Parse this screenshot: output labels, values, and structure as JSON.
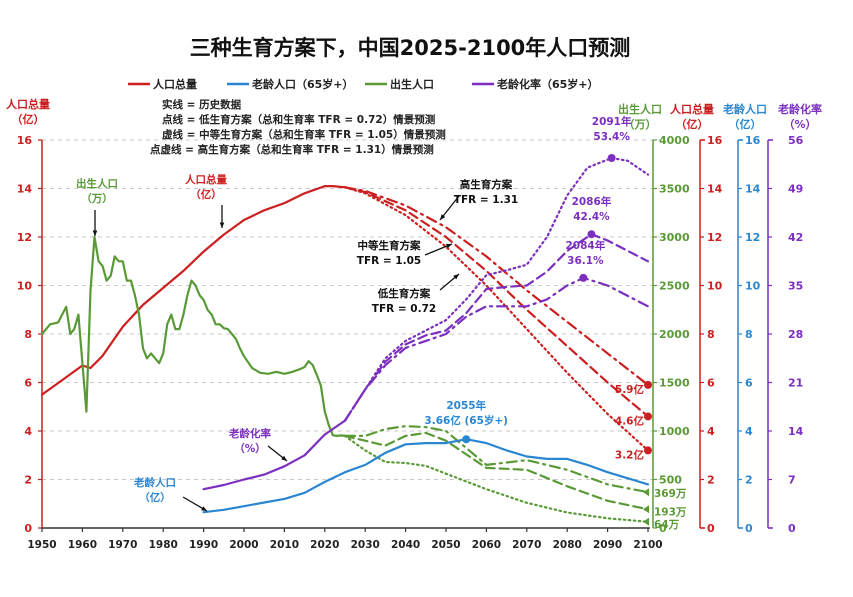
{
  "chart_data": {
    "type": "line",
    "title": "三种生育方案下，中国2025-2100年人口预测",
    "xlabel": "",
    "xlim": [
      1950,
      2100
    ],
    "x_ticks": [
      "1950",
      "1960",
      "1970",
      "1980",
      "1990",
      "2000",
      "2010",
      "2020",
      "2030",
      "2040",
      "2050",
      "2060",
      "2070",
      "2080",
      "2090",
      "2100"
    ],
    "legend": {
      "placement": "top",
      "entries": [
        {
          "label": "人口总量",
          "color": "#cc1f1f"
        },
        {
          "label": "老龄人口（65岁+）",
          "color": "#2a86d1"
        },
        {
          "label": "出生人口",
          "color": "#5a9a36"
        },
        {
          "label": "老龄化率（65岁+）",
          "color": "#7b2fbf"
        }
      ],
      "notes": [
        "实线 = 历史数据",
        "点线 = 低生育方案（总和生育率 TFR = 0.72）情景预测",
        "虚线 = 中等生育方案（总和生育率 TFR = 1.05）情景预测",
        "点虚线 = 高生育方案（总和生育率 TFR = 1.31）情景预测"
      ]
    },
    "axes": [
      {
        "id": "births",
        "title": "出生人口",
        "unit": "（万）",
        "color": "#5a9a36",
        "ylim": [
          0,
          4000
        ],
        "ticks": [
          "0",
          "500",
          "1000",
          "1500",
          "2000",
          "2500",
          "3000",
          "3500",
          "4000"
        ]
      },
      {
        "id": "pop_right",
        "title": "人口总量",
        "unit": "（亿）",
        "color": "#cc1f1f",
        "ylim": [
          0,
          16
        ],
        "ticks": [
          "0",
          "2",
          "4",
          "6",
          "8",
          "10",
          "12",
          "14",
          "16"
        ]
      },
      {
        "id": "elderly",
        "title": "老龄人口",
        "unit": "（亿）",
        "color": "#2a86d1",
        "ylim": [
          0,
          16
        ],
        "ticks": [
          "0",
          "2",
          "4",
          "6",
          "8",
          "10",
          "12",
          "14",
          "16"
        ]
      },
      {
        "id": "aging",
        "title": "老龄化率",
        "unit": "（%）",
        "color": "#7b2fbf",
        "ylim": [
          0,
          56
        ],
        "ticks": [
          "0",
          "7",
          "14",
          "21",
          "28",
          "35",
          "42",
          "49",
          "56"
        ]
      }
    ],
    "left_axis": {
      "title": "人口总量",
      "unit": "（亿）",
      "color": "#cc1f1f",
      "ylim": [
        0,
        16
      ],
      "ticks": [
        "0",
        "2",
        "4",
        "6",
        "8",
        "10",
        "12",
        "14",
        "16"
      ]
    },
    "series": [
      {
        "name": "人口总量-历史",
        "axis": "pop",
        "style": "solid",
        "color": "#cc1f1f",
        "x": [
          1950,
          1955,
          1960,
          1962,
          1965,
          1970,
          1975,
          1980,
          1985,
          1990,
          1995,
          2000,
          2005,
          2010,
          2015,
          2020,
          2022,
          2025
        ],
        "y": [
          5.5,
          6.1,
          6.7,
          6.6,
          7.1,
          8.3,
          9.2,
          9.9,
          10.6,
          11.4,
          12.1,
          12.7,
          13.1,
          13.4,
          13.8,
          14.1,
          14.1,
          14.05
        ]
      },
      {
        "name": "人口总量-低",
        "axis": "pop",
        "style": "dotted",
        "color": "#cc1f1f",
        "x": [
          2025,
          2030,
          2040,
          2050,
          2060,
          2070,
          2080,
          2090,
          2100
        ],
        "y": [
          14.05,
          13.8,
          12.9,
          11.6,
          10.0,
          8.2,
          6.4,
          4.7,
          3.2
        ]
      },
      {
        "name": "人口总量-中",
        "axis": "pop",
        "style": "dashed",
        "color": "#cc1f1f",
        "x": [
          2025,
          2030,
          2040,
          2050,
          2060,
          2070,
          2080,
          2090,
          2100
        ],
        "y": [
          14.05,
          13.85,
          13.1,
          12.0,
          10.6,
          9.0,
          7.5,
          6.0,
          4.6
        ]
      },
      {
        "name": "人口总量-高",
        "axis": "pop",
        "style": "dashdot",
        "color": "#cc1f1f",
        "x": [
          2025,
          2030,
          2040,
          2050,
          2060,
          2070,
          2080,
          2090,
          2100
        ],
        "y": [
          14.05,
          13.9,
          13.3,
          12.4,
          11.2,
          9.8,
          8.5,
          7.2,
          5.9
        ]
      },
      {
        "name": "出生人口-历史",
        "axis": "births",
        "style": "solid",
        "color": "#5a9a36",
        "x": [
          1950,
          1952,
          1954,
          1956,
          1957,
          1958,
          1959,
          1960,
          1961,
          1962,
          1963,
          1964,
          1965,
          1966,
          1967,
          1968,
          1969,
          1970,
          1971,
          1972,
          1973,
          1974,
          1975,
          1976,
          1977,
          1978,
          1979,
          1980,
          1981,
          1982,
          1983,
          1984,
          1985,
          1986,
          1987,
          1988,
          1989,
          1990,
          1991,
          1992,
          1993,
          1994,
          1995,
          1996,
          1997,
          1998,
          1999,
          2000,
          2002,
          2004,
          2006,
          2008,
          2010,
          2012,
          2014,
          2015,
          2016,
          2017,
          2018,
          2019,
          2020,
          2021,
          2022,
          2023,
          2024,
          2025
        ],
        "y": [
          2000,
          2100,
          2120,
          2280,
          2000,
          2050,
          2200,
          1700,
          1200,
          2450,
          3000,
          2750,
          2700,
          2550,
          2600,
          2800,
          2750,
          2750,
          2550,
          2550,
          2400,
          2200,
          1850,
          1750,
          1800,
          1750,
          1700,
          1800,
          2100,
          2200,
          2050,
          2050,
          2200,
          2400,
          2550,
          2500,
          2400,
          2350,
          2250,
          2200,
          2100,
          2100,
          2060,
          2050,
          2000,
          1950,
          1850,
          1770,
          1650,
          1600,
          1590,
          1610,
          1590,
          1610,
          1640,
          1660,
          1720,
          1680,
          1580,
          1470,
          1200,
          1060,
          956,
          950,
          955,
          950
        ]
      },
      {
        "name": "出生人口-低",
        "axis": "births",
        "style": "dotted",
        "color": "#5a9a36",
        "x": [
          2025,
          2030,
          2035,
          2040,
          2045,
          2050,
          2060,
          2070,
          2080,
          2090,
          2100
        ],
        "y": [
          950,
          800,
          680,
          670,
          640,
          560,
          400,
          260,
          160,
          100,
          64
        ]
      },
      {
        "name": "出生人口-中",
        "axis": "births",
        "style": "dashed",
        "color": "#5a9a36",
        "x": [
          2025,
          2030,
          2035,
          2040,
          2045,
          2050,
          2060,
          2070,
          2080,
          2090,
          2100
        ],
        "y": [
          950,
          900,
          850,
          950,
          980,
          900,
          620,
          600,
          430,
          280,
          193
        ]
      },
      {
        "name": "出生人口-高",
        "axis": "births",
        "style": "dashdot",
        "color": "#5a9a36",
        "x": [
          2025,
          2030,
          2035,
          2040,
          2045,
          2050,
          2060,
          2070,
          2080,
          2090,
          2100
        ],
        "y": [
          950,
          950,
          1020,
          1050,
          1040,
          1000,
          650,
          700,
          600,
          450,
          369
        ]
      },
      {
        "name": "老龄人口-历史",
        "axis": "elderly",
        "style": "solid",
        "color": "#2a86d1",
        "x": [
          1990,
          1995,
          2000,
          2005,
          2010,
          2015,
          2020,
          2025
        ],
        "y": [
          0.65,
          0.75,
          0.9,
          1.05,
          1.2,
          1.45,
          1.9,
          2.3
        ]
      },
      {
        "name": "老龄人口-预测",
        "axis": "elderly",
        "style": "solid",
        "color": "#2a86d1",
        "x": [
          2025,
          2030,
          2035,
          2040,
          2045,
          2050,
          2055,
          2060,
          2065,
          2070,
          2075,
          2080,
          2085,
          2090,
          2095,
          2100
        ],
        "y": [
          2.3,
          2.6,
          3.1,
          3.45,
          3.5,
          3.5,
          3.66,
          3.5,
          3.2,
          2.95,
          2.85,
          2.85,
          2.6,
          2.3,
          2.05,
          1.8
        ]
      },
      {
        "name": "老龄化率-历史",
        "axis": "aging",
        "style": "solid",
        "color": "#7b2fbf",
        "x": [
          1990,
          1995,
          2000,
          2005,
          2010,
          2015,
          2020,
          2025
        ],
        "y": [
          5.6,
          6.2,
          7.0,
          7.7,
          8.9,
          10.5,
          13.5,
          15.5
        ]
      },
      {
        "name": "老龄化率-低",
        "axis": "aging",
        "style": "dotted",
        "color": "#7b2fbf",
        "x": [
          2025,
          2030,
          2035,
          2040,
          2045,
          2050,
          2055,
          2060,
          2065,
          2070,
          2075,
          2080,
          2085,
          2091,
          2095,
          2100
        ],
        "y": [
          15.5,
          20,
          24.5,
          27,
          28.5,
          30,
          33,
          36.5,
          37.2,
          38,
          42,
          48,
          52,
          53.4,
          53,
          51
        ]
      },
      {
        "name": "老龄化率-中",
        "axis": "aging",
        "style": "dashed",
        "color": "#7b2fbf",
        "x": [
          2025,
          2030,
          2035,
          2040,
          2045,
          2050,
          2055,
          2060,
          2065,
          2070,
          2075,
          2080,
          2086,
          2090,
          2095,
          2100
        ],
        "y": [
          15.5,
          20,
          24,
          26.5,
          27.8,
          28.5,
          31,
          34.5,
          34.8,
          35,
          37,
          40,
          42.4,
          41.5,
          40,
          38.5
        ]
      },
      {
        "name": "老龄化率-高",
        "axis": "aging",
        "style": "dashdot",
        "color": "#7b2fbf",
        "x": [
          2025,
          2030,
          2035,
          2040,
          2045,
          2050,
          2055,
          2060,
          2065,
          2070,
          2075,
          2080,
          2084,
          2090,
          2095,
          2100
        ],
        "y": [
          15.5,
          20,
          23.5,
          26,
          27,
          28,
          30.5,
          32,
          32,
          32,
          33,
          35,
          36.1,
          35,
          33.5,
          32
        ]
      }
    ],
    "annotations": [
      {
        "id": "label-pop",
        "lines": [
          "人口总量",
          "（亿）"
        ],
        "color": "#cc1f1f"
      },
      {
        "id": "label-births",
        "lines": [
          "出生人口",
          "（万）"
        ],
        "color": "#5a9a36"
      },
      {
        "id": "label-aging",
        "lines": [
          "老龄化率",
          "（%）"
        ],
        "color": "#7b2fbf"
      },
      {
        "id": "label-elderly",
        "lines": [
          "老龄人口",
          "（亿）"
        ],
        "color": "#2a86d1"
      },
      {
        "id": "label-high",
        "lines": [
          "高生育方案",
          "TFR = 1.31"
        ],
        "color": "#111111"
      },
      {
        "id": "label-mid",
        "lines": [
          "中等生育方案",
          "TFR = 1.05"
        ],
        "color": "#111111"
      },
      {
        "id": "label-low",
        "lines": [
          "低生育方案",
          "TFR = 0.72"
        ],
        "color": "#111111"
      },
      {
        "id": "peak-elderly",
        "lines": [
          "2055年",
          "3.66亿 (65岁+)"
        ],
        "color": "#2a86d1",
        "x": 2055,
        "y": 3.66,
        "axis": "elderly"
      },
      {
        "id": "peak-aging-low",
        "lines": [
          "2091年",
          "53.4%"
        ],
        "color": "#7b2fbf",
        "x": 2091,
        "y": 53.4,
        "axis": "aging"
      },
      {
        "id": "peak-aging-mid",
        "lines": [
          "2086年",
          "42.4%"
        ],
        "color": "#7b2fbf",
        "x": 2086,
        "y": 42.4,
        "axis": "aging"
      },
      {
        "id": "peak-aging-high",
        "lines": [
          "2084年",
          "36.1%"
        ],
        "color": "#7b2fbf",
        "x": 2084,
        "y": 36.1,
        "axis": "aging"
      },
      {
        "id": "end-pop-high",
        "lines": [
          "5.9亿"
        ],
        "color": "#cc1f1f",
        "x": 2100,
        "y": 5.9,
        "axis": "pop"
      },
      {
        "id": "end-pop-mid",
        "lines": [
          "4.6亿"
        ],
        "color": "#cc1f1f",
        "x": 2100,
        "y": 4.6,
        "axis": "pop"
      },
      {
        "id": "end-pop-low",
        "lines": [
          "3.2亿"
        ],
        "color": "#cc1f1f",
        "x": 2100,
        "y": 3.2,
        "axis": "pop"
      },
      {
        "id": "end-births-high",
        "lines": [
          "369万"
        ],
        "color": "#5a9a36",
        "x": 2100,
        "y": 369,
        "axis": "births"
      },
      {
        "id": "end-births-mid",
        "lines": [
          "193万"
        ],
        "color": "#5a9a36",
        "x": 2100,
        "y": 193,
        "axis": "births"
      },
      {
        "id": "end-births-low",
        "lines": [
          "64万"
        ],
        "color": "#5a9a36",
        "x": 2100,
        "y": 64,
        "axis": "births"
      }
    ],
    "grid": true
  }
}
